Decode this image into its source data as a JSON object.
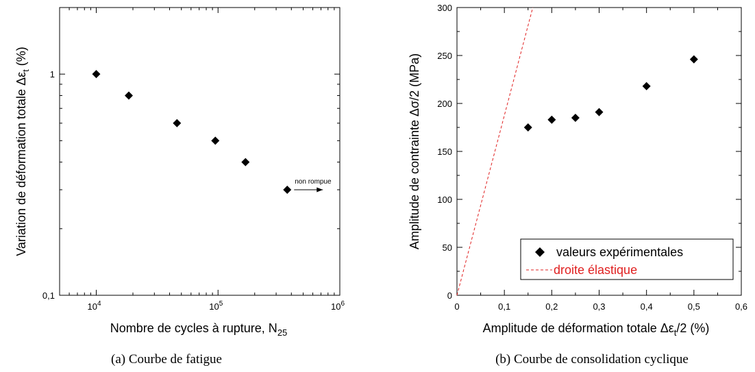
{
  "figure": {
    "caption_a": "(a) Courbe de fatigue",
    "caption_b": "(b) Courbe de consolidation cyclique"
  },
  "chart_data": [
    {
      "type": "scatter",
      "xscale": "log",
      "yscale": "log",
      "xlim": [
        5000,
        1000000
      ],
      "ylim": [
        0.1,
        2
      ],
      "grid": false,
      "xlabel": "Nombre de cycles à rupture, N",
      "xlabel_sub": "25",
      "ylabel": "Variation de déformation totale Δε",
      "ylabel_sub": "t",
      "ylabel_unit": " (%)",
      "xticks": [
        {
          "value": 10000,
          "base": "10",
          "exp": "4"
        },
        {
          "value": 100000,
          "base": "10",
          "exp": "5"
        },
        {
          "value": 1000000,
          "base": "10",
          "exp": "6"
        }
      ],
      "yticks": [
        {
          "value": 1,
          "label": "1"
        },
        {
          "value": 0.1,
          "label": "0,1"
        }
      ],
      "series": [
        {
          "marker": "diamond",
          "color": "#000000",
          "points": [
            {
              "x": 10000,
              "y": 1.0
            },
            {
              "x": 18500,
              "y": 0.8
            },
            {
              "x": 46000,
              "y": 0.6
            },
            {
              "x": 95000,
              "y": 0.5
            },
            {
              "x": 168000,
              "y": 0.4
            },
            {
              "x": 370000,
              "y": 0.3
            }
          ]
        }
      ],
      "annotations": [
        {
          "text": "non rompue",
          "x": 370000,
          "y": 0.3,
          "arrow": "right"
        }
      ]
    },
    {
      "type": "scatter",
      "xlim": [
        0,
        0.6
      ],
      "ylim": [
        0,
        300
      ],
      "grid": false,
      "xlabel": "Amplitude de déformation totale Δε",
      "xlabel_sub": "t",
      "xlabel_unit": "/2 (%)",
      "ylabel": "Amplitude de contrainte Δσ/2 (MPa)",
      "xticks": [
        {
          "value": 0,
          "label": "0"
        },
        {
          "value": 0.1,
          "label": "0,1"
        },
        {
          "value": 0.2,
          "label": "0,2"
        },
        {
          "value": 0.3,
          "label": "0,3"
        },
        {
          "value": 0.4,
          "label": "0,4"
        },
        {
          "value": 0.5,
          "label": "0,5"
        },
        {
          "value": 0.6,
          "label": "0,6"
        }
      ],
      "yticks": [
        0,
        50,
        100,
        150,
        200,
        250,
        300
      ],
      "series": [
        {
          "name": "valeurs expérimentales",
          "marker": "diamond",
          "color": "#000000",
          "points": [
            {
              "x": 0.15,
              "y": 175
            },
            {
              "x": 0.2,
              "y": 183
            },
            {
              "x": 0.25,
              "y": 185
            },
            {
              "x": 0.3,
              "y": 191
            },
            {
              "x": 0.4,
              "y": 218
            },
            {
              "x": 0.5,
              "y": 246
            }
          ]
        },
        {
          "name": "droite élastique",
          "style": "dashed",
          "color": "#e02020",
          "points": [
            {
              "x": 0,
              "y": 0
            },
            {
              "x": 0.16,
              "y": 300
            }
          ]
        }
      ],
      "legend": "bottom-right"
    }
  ]
}
